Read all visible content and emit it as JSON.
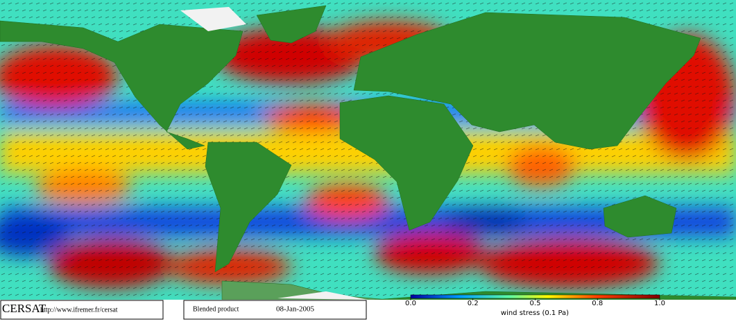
{
  "footer": {
    "logo": "CERSAT",
    "url": "http://www.ifremer.fr/cersat",
    "product": "Blended product",
    "date": "08-Jan-2005"
  },
  "colorbar": {
    "ticks": [
      {
        "value": 0,
        "label": "0.0"
      },
      0.2,
      0.5,
      0.8,
      {
        "value": 1,
        "label": "1.0"
      }
    ],
    "label": "wind stress (0.1 Pa)"
  }
}
